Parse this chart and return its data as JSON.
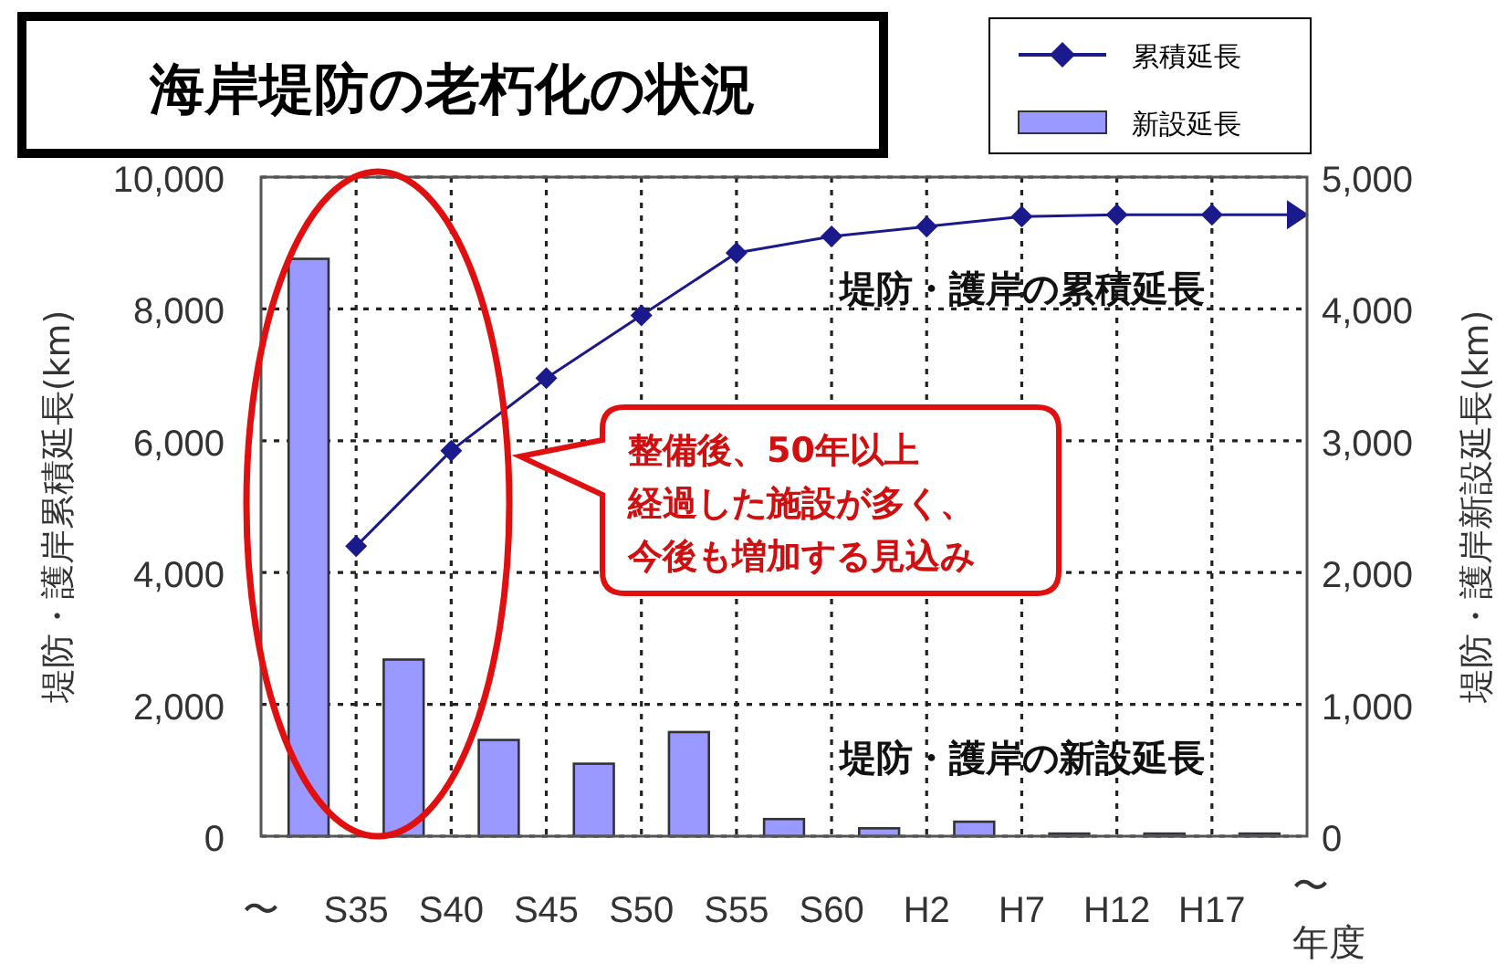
{
  "chart_data": {
    "type": "bar",
    "title": "海岸堤防の老朽化の状況",
    "categories": [
      "〜",
      null,
      "S35",
      null,
      "S40",
      null,
      "S45",
      null,
      "S50",
      null,
      "S55",
      null,
      "S60",
      null,
      "H2",
      null,
      "H7",
      null,
      "H12",
      null,
      "H17",
      null,
      "〜"
    ],
    "series": [
      {
        "name": "累積延長",
        "type": "line",
        "color": "#1a1a8c",
        "marker": "diamond",
        "values": [
          null,
          null,
          4400,
          null,
          5850,
          null,
          6950,
          null,
          7900,
          null,
          8850,
          null,
          9100,
          null,
          9250,
          null,
          9400,
          null,
          9430,
          null,
          9430,
          null,
          null
        ]
      },
      {
        "name": "新設延長",
        "axis": "y2",
        "color": "#9999ff",
        "values": [
          null,
          4380,
          null,
          1340,
          null,
          730,
          null,
          550,
          null,
          790,
          null,
          130,
          null,
          60,
          null,
          110,
          null,
          20,
          null,
          20,
          null,
          20,
          null
        ]
      }
    ],
    "ylabel": "堤防・護岸累積延長(km)",
    "y2label": "堤防・護岸新設延長(km)",
    "xlabel": "年度",
    "ylim": [
      0,
      10000
    ],
    "yticks": [
      {
        "value": 0,
        "label": "0"
      },
      {
        "value": 2000,
        "label": "2,000"
      },
      {
        "value": 4000,
        "label": "4,000"
      },
      {
        "value": 6000,
        "label": "6,000"
      },
      {
        "value": 8000,
        "label": "8,000"
      },
      {
        "value": 10000,
        "label": "10,000"
      }
    ],
    "y2lim": [
      0,
      5000
    ],
    "y2ticks": [
      {
        "value": 0,
        "label": "0"
      },
      {
        "value": 1000,
        "label": "1,000"
      },
      {
        "value": 2000,
        "label": "2,000"
      },
      {
        "value": 3000,
        "label": "3,000"
      },
      {
        "value": 4000,
        "label": "4,000"
      },
      {
        "value": 5000,
        "label": "5,000"
      }
    ],
    "annotations": [
      "堤防・護岸の累積延長",
      "堤防・護岸の新設延長",
      "整備後、50年以上",
      "経過した施設が多く、",
      "今後も増加する見込み"
    ],
    "grid": true,
    "legend": "top right"
  }
}
